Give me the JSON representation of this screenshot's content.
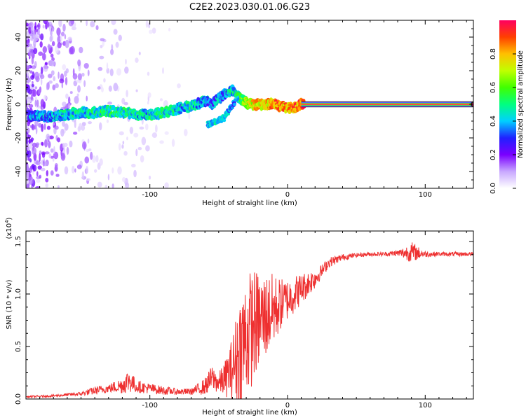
{
  "figure": {
    "title": "C2E2.2023.030.01.06.G23"
  },
  "colorbar": {
    "label": "Normalized spectral amplitude",
    "range": [
      0,
      1
    ],
    "ticks": [
      0.0,
      0.2,
      0.4,
      0.6,
      0.8
    ],
    "tick_labels": [
      "0.0",
      "0.2",
      "0.4",
      "0.6",
      "0.8"
    ],
    "stops": [
      "#ffffff",
      "#c8a8ff",
      "#7a00ff",
      "#2020ff",
      "#00d0ff",
      "#00ff80",
      "#40ff00",
      "#c0ff00",
      "#ffc000",
      "#ff4000",
      "#ff0060"
    ]
  },
  "chart_data": [
    {
      "type": "heatmap",
      "name": "spectrogram",
      "xlabel": "Height of straight line (km)",
      "ylabel": "Frequency (Hz)",
      "xlim": [
        -190,
        135
      ],
      "ylim": [
        -50,
        50
      ],
      "x_ticks": [
        -100,
        0,
        100
      ],
      "x_tick_labels": [
        "-100",
        "0",
        "100"
      ],
      "y_ticks": [
        -40,
        -20,
        0,
        20,
        40
      ],
      "y_tick_labels": [
        "-40",
        "-20",
        "0",
        "20",
        "40"
      ],
      "ridge": {
        "description": "dominant frequency track",
        "x": [
          -185,
          -170,
          -160,
          -150,
          -140,
          -130,
          -120,
          -110,
          -100,
          -90,
          -80,
          -70,
          -60,
          -55,
          -50,
          -45,
          -40,
          -35,
          -30,
          -25,
          -20,
          -15,
          -10,
          -5,
          0,
          5,
          10,
          135
        ],
        "y": [
          -7,
          -7,
          -6,
          -5,
          -5,
          -4,
          -5,
          -6,
          -6,
          -5,
          -3,
          -1,
          2,
          0,
          4,
          6,
          8,
          4,
          1,
          0,
          0,
          0,
          0,
          -1,
          -2,
          -2,
          0,
          0
        ],
        "amplitude": [
          0.45,
          0.5,
          0.55,
          0.55,
          0.6,
          0.6,
          0.6,
          0.55,
          0.55,
          0.6,
          0.55,
          0.55,
          0.5,
          0.45,
          0.5,
          0.5,
          0.55,
          0.6,
          0.8,
          0.85,
          0.9,
          0.9,
          0.95,
          0.95,
          0.95,
          0.95,
          1.0,
          1.0
        ]
      },
      "branch": {
        "description": "secondary descending track",
        "x": [
          -58,
          -52,
          -46,
          -42,
          -38
        ],
        "y": [
          -12,
          -10,
          -8,
          -3,
          2
        ],
        "amplitude": [
          0.45,
          0.5,
          0.5,
          0.45,
          0.4
        ]
      },
      "scatter_region": {
        "x_range": [
          -190,
          -60
        ],
        "description": "sparse low-amplitude noise"
      }
    },
    {
      "type": "line",
      "name": "snr",
      "xlabel": "Height of straight line (km)",
      "ylabel": "SNR (10 * v/v)",
      "y_multiplier_label": "(x10",
      "y_multiplier_exp": "4",
      "y_multiplier_close": ")",
      "xlim": [
        -190,
        135
      ],
      "ylim": [
        0.0,
        1.6
      ],
      "x_ticks": [
        -100,
        0,
        100
      ],
      "x_tick_labels": [
        "-100",
        "0",
        "100"
      ],
      "y_ticks": [
        0.0,
        0.5,
        1.0,
        1.5
      ],
      "y_tick_labels": [
        "0.0",
        "0.5",
        "1.0",
        "1.5"
      ],
      "color": "#ee3030",
      "series": [
        {
          "name": "SNR envelope",
          "x": [
            -190,
            -170,
            -150,
            -140,
            -130,
            -120,
            -115,
            -110,
            -100,
            -90,
            -80,
            -70,
            -60,
            -55,
            -50,
            -45,
            -40,
            -35,
            -30,
            -25,
            -20,
            -15,
            -10,
            -5,
            0,
            5,
            10,
            15,
            20,
            25,
            30,
            40,
            50,
            60,
            70,
            80,
            85,
            90,
            95,
            100,
            110,
            120,
            135
          ],
          "y": [
            0.02,
            0.03,
            0.05,
            0.08,
            0.1,
            0.13,
            0.18,
            0.12,
            0.1,
            0.08,
            0.07,
            0.07,
            0.12,
            0.2,
            0.15,
            0.2,
            0.3,
            0.45,
            0.6,
            0.7,
            0.75,
            0.8,
            0.85,
            0.9,
            0.95,
            1.0,
            1.05,
            1.1,
            1.15,
            1.22,
            1.3,
            1.35,
            1.37,
            1.38,
            1.38,
            1.39,
            1.39,
            1.4,
            1.39,
            1.38,
            1.38,
            1.38,
            1.38
          ],
          "noise": [
            0.01,
            0.01,
            0.02,
            0.04,
            0.04,
            0.08,
            0.12,
            0.06,
            0.05,
            0.04,
            0.03,
            0.03,
            0.08,
            0.12,
            0.1,
            0.18,
            0.3,
            0.55,
            0.6,
            0.55,
            0.45,
            0.4,
            0.35,
            0.25,
            0.2,
            0.18,
            0.15,
            0.12,
            0.1,
            0.06,
            0.05,
            0.03,
            0.02,
            0.02,
            0.02,
            0.03,
            0.06,
            0.1,
            0.06,
            0.03,
            0.02,
            0.02,
            0.02
          ]
        }
      ]
    }
  ]
}
